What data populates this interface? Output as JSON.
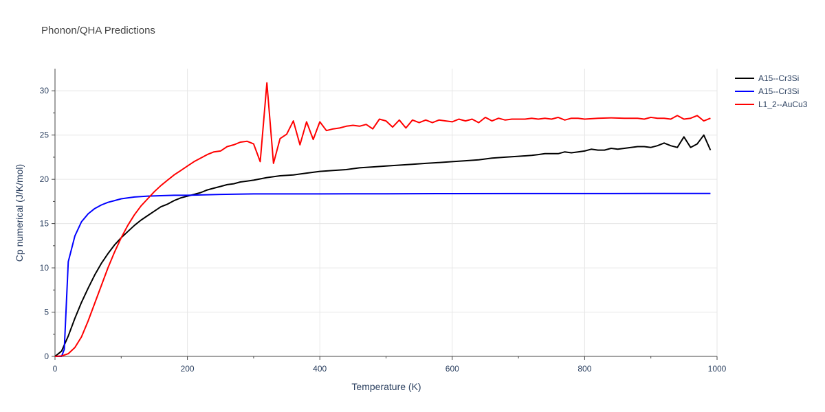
{
  "chart_data": {
    "type": "line",
    "title": "Phonon/QHA Predictions",
    "xlabel": "Temperature (K)",
    "ylabel": "Cp numerical (J/K/mol)",
    "xlim": [
      0,
      1000
    ],
    "ylim": [
      0,
      32.5
    ],
    "xticks": [
      0,
      200,
      400,
      600,
      800,
      1000
    ],
    "yticks": [
      0,
      5,
      10,
      15,
      20,
      25,
      30
    ],
    "grid": true,
    "legend_position": "top-right",
    "series": [
      {
        "name": "A15--Cr3Si",
        "color": "#000000",
        "x": [
          0,
          10,
          20,
          30,
          40,
          50,
          60,
          70,
          80,
          90,
          100,
          110,
          120,
          130,
          140,
          150,
          160,
          170,
          180,
          190,
          200,
          210,
          220,
          230,
          240,
          250,
          260,
          270,
          280,
          290,
          300,
          320,
          340,
          360,
          380,
          400,
          420,
          440,
          460,
          480,
          500,
          520,
          540,
          560,
          580,
          600,
          620,
          640,
          660,
          680,
          700,
          720,
          730,
          740,
          750,
          760,
          770,
          780,
          790,
          800,
          810,
          820,
          830,
          840,
          850,
          860,
          870,
          880,
          890,
          900,
          910,
          920,
          930,
          940,
          950,
          960,
          970,
          980,
          990
        ],
        "values": [
          0,
          0.6,
          2.3,
          4.3,
          6.1,
          7.7,
          9.2,
          10.5,
          11.6,
          12.6,
          13.4,
          14.1,
          14.8,
          15.4,
          15.9,
          16.4,
          16.9,
          17.2,
          17.6,
          17.9,
          18.1,
          18.3,
          18.5,
          18.8,
          19.0,
          19.2,
          19.4,
          19.5,
          19.7,
          19.8,
          19.9,
          20.2,
          20.4,
          20.5,
          20.7,
          20.9,
          21.0,
          21.1,
          21.3,
          21.4,
          21.5,
          21.6,
          21.7,
          21.8,
          21.9,
          22.0,
          22.1,
          22.2,
          22.4,
          22.5,
          22.6,
          22.7,
          22.8,
          22.9,
          22.9,
          22.9,
          23.1,
          23.0,
          23.1,
          23.2,
          23.4,
          23.3,
          23.3,
          23.5,
          23.4,
          23.5,
          23.6,
          23.7,
          23.7,
          23.6,
          23.8,
          24.1,
          23.8,
          23.6,
          24.8,
          23.6,
          24.0,
          25.0,
          23.3
        ]
      },
      {
        "name": "A15--Cr3Si",
        "color": "#0000ff",
        "x": [
          0,
          10,
          14,
          20,
          30,
          40,
          50,
          60,
          70,
          80,
          90,
          100,
          120,
          140,
          160,
          180,
          200,
          250,
          300,
          400,
          500,
          600,
          700,
          800,
          900,
          990
        ],
        "values": [
          0,
          0,
          0.8,
          10.7,
          13.6,
          15.2,
          16.1,
          16.7,
          17.1,
          17.4,
          17.6,
          17.8,
          18.0,
          18.1,
          18.15,
          18.2,
          18.2,
          18.3,
          18.35,
          18.35,
          18.37,
          18.38,
          18.39,
          18.39,
          18.4,
          18.4
        ],
        "yrange": [
          0,
          18.4
        ]
      },
      {
        "name": "L1_2--AuCu3",
        "color": "#ff0000",
        "x": [
          0,
          10,
          20,
          30,
          40,
          50,
          60,
          70,
          80,
          90,
          100,
          110,
          120,
          130,
          140,
          150,
          160,
          170,
          180,
          190,
          200,
          210,
          220,
          230,
          240,
          250,
          260,
          270,
          280,
          290,
          300,
          310,
          320,
          330,
          340,
          350,
          360,
          370,
          380,
          390,
          400,
          410,
          420,
          430,
          440,
          450,
          460,
          470,
          480,
          490,
          500,
          510,
          520,
          530,
          540,
          550,
          560,
          570,
          580,
          590,
          600,
          610,
          620,
          630,
          640,
          650,
          660,
          670,
          680,
          690,
          700,
          710,
          720,
          730,
          740,
          750,
          760,
          770,
          780,
          790,
          800,
          820,
          840,
          860,
          880,
          890,
          900,
          910,
          920,
          930,
          940,
          950,
          960,
          970,
          980,
          990
        ],
        "values": [
          0,
          0.05,
          0.3,
          1.0,
          2.2,
          4.0,
          6.0,
          8.0,
          10.0,
          11.8,
          13.4,
          14.8,
          16.0,
          17.0,
          17.8,
          18.6,
          19.3,
          19.9,
          20.5,
          21.0,
          21.5,
          22.0,
          22.4,
          22.8,
          23.1,
          23.2,
          23.7,
          23.9,
          24.2,
          24.3,
          24.0,
          22.0,
          30.9,
          21.8,
          24.6,
          25.1,
          26.6,
          23.9,
          26.5,
          24.5,
          26.5,
          25.5,
          25.7,
          25.8,
          26.0,
          26.1,
          26.0,
          26.2,
          25.7,
          26.8,
          26.6,
          25.9,
          26.7,
          25.8,
          26.7,
          26.4,
          26.7,
          26.4,
          26.7,
          26.6,
          26.5,
          26.8,
          26.6,
          26.8,
          26.4,
          27.0,
          26.6,
          26.9,
          26.7,
          26.8,
          26.8,
          26.8,
          26.9,
          26.8,
          26.9,
          26.8,
          27.0,
          26.7,
          26.9,
          26.9,
          26.8,
          26.9,
          26.95,
          26.9,
          26.9,
          26.8,
          27.0,
          26.9,
          26.9,
          26.8,
          27.2,
          26.8,
          26.9,
          27.2,
          26.6,
          26.9
        ]
      }
    ]
  }
}
